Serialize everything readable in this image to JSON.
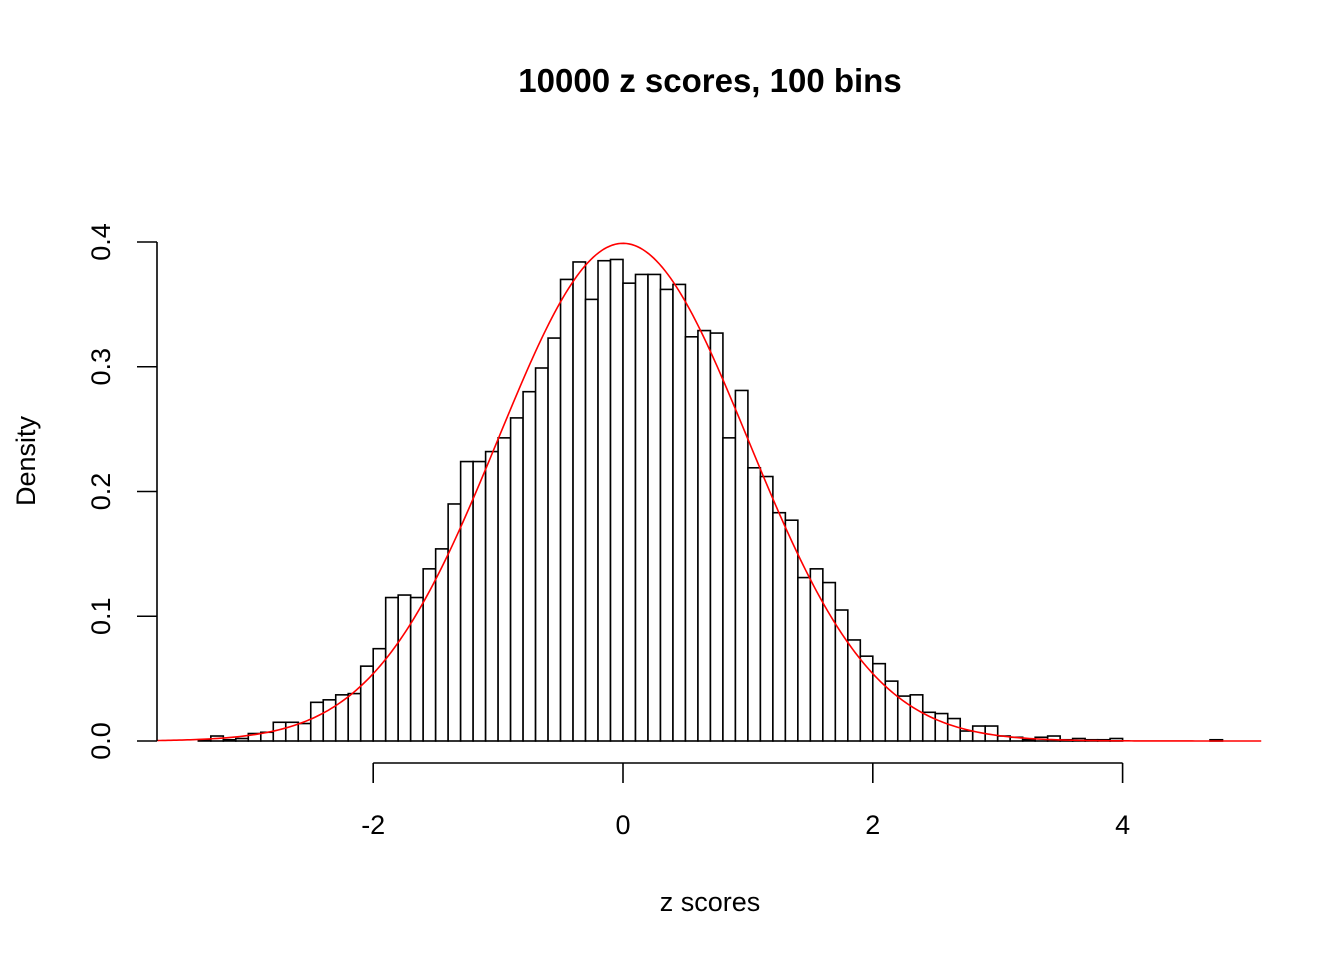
{
  "chart_data": {
    "type": "bar",
    "subtype": "histogram",
    "title": "10000 z scores, 100 bins",
    "xlabel": "z scores",
    "ylabel": "Density",
    "bin_start": -3.4,
    "bin_width": 0.1,
    "values": [
      0.001,
      0.004,
      0.001,
      0.002,
      0.006,
      0.007,
      0.015,
      0.015,
      0.014,
      0.031,
      0.033,
      0.037,
      0.038,
      0.06,
      0.074,
      0.115,
      0.117,
      0.115,
      0.138,
      0.154,
      0.19,
      0.224,
      0.224,
      0.232,
      0.243,
      0.259,
      0.28,
      0.299,
      0.323,
      0.37,
      0.384,
      0.354,
      0.385,
      0.386,
      0.367,
      0.374,
      0.374,
      0.362,
      0.366,
      0.324,
      0.329,
      0.327,
      0.243,
      0.281,
      0.219,
      0.212,
      0.183,
      0.177,
      0.131,
      0.138,
      0.127,
      0.105,
      0.081,
      0.068,
      0.062,
      0.048,
      0.036,
      0.037,
      0.023,
      0.022,
      0.018,
      0.008,
      0.012,
      0.012,
      0.004,
      0.003,
      0.001,
      0.003,
      0.004,
      0.001,
      0.002,
      0.001,
      0.001,
      0.002,
      0,
      0,
      0,
      0,
      0,
      0,
      0,
      0.001
    ],
    "overlay": {
      "type": "normal-density",
      "mean": 0,
      "sd": 1,
      "color": "#ff0000"
    },
    "xlim": [
      -3.73,
      5.11
    ],
    "ylim": [
      0,
      0.4
    ],
    "xticks": [
      "-2",
      "0",
      "2",
      "4"
    ],
    "xtick_values": [
      -2,
      0,
      2,
      4
    ],
    "yticks": [
      "0.0",
      "0.1",
      "0.2",
      "0.3",
      "0.4"
    ],
    "ytick_values": [
      0,
      0.1,
      0.2,
      0.3,
      0.4
    ],
    "grid": false,
    "bar_fill": "#ffffff",
    "bar_stroke": "#000000"
  }
}
